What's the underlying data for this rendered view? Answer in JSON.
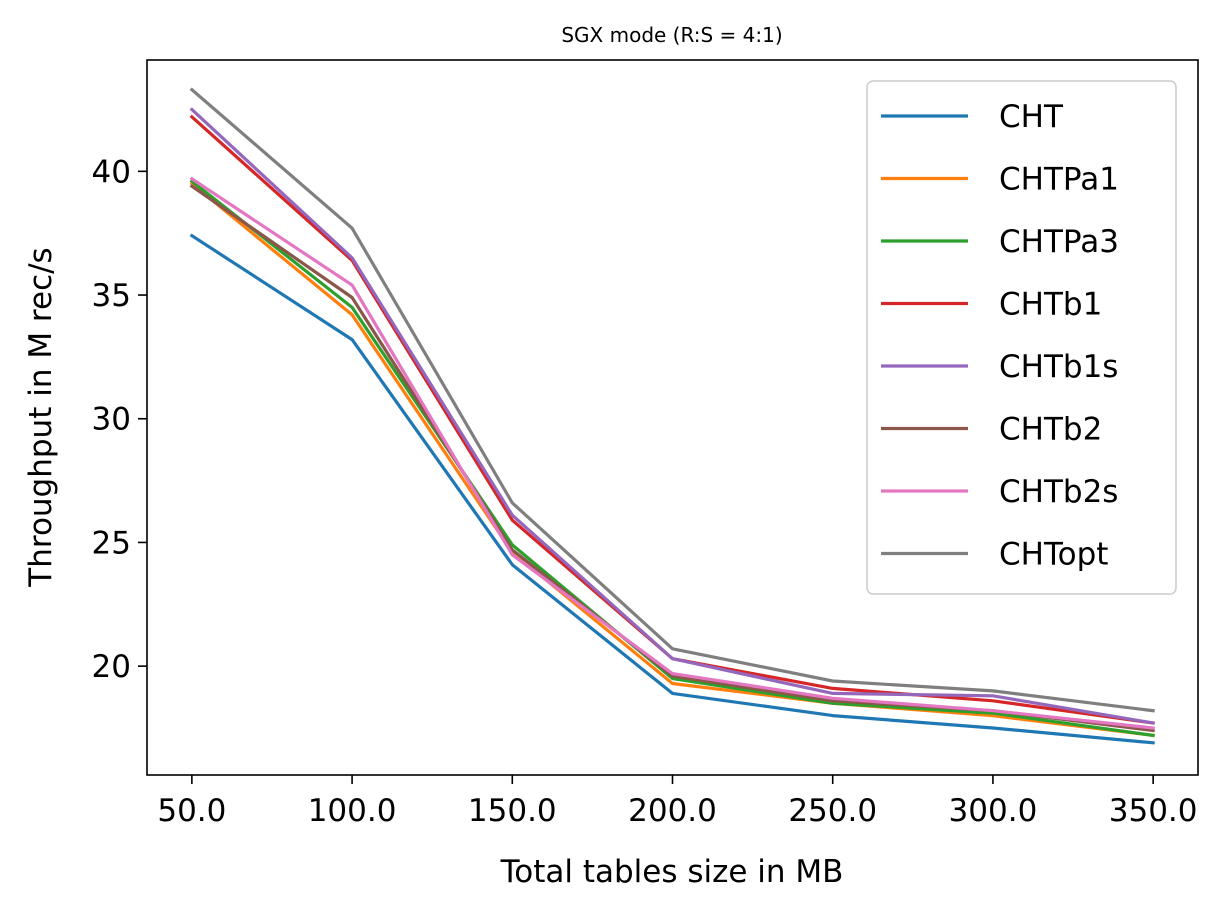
{
  "chart_data": {
    "type": "line",
    "title": "SGX mode (R:S = 4:1)",
    "xlabel": "Total tables size in MB",
    "ylabel": "Throughput in M rec/s",
    "x": [
      50.0,
      100.0,
      150.0,
      200.0,
      250.0,
      300.0,
      350.0
    ],
    "x_tick_labels": [
      "50.0",
      "100.0",
      "150.0",
      "200.0",
      "250.0",
      "300.0",
      "350.0"
    ],
    "y_ticks": [
      20,
      25,
      30,
      35,
      40
    ],
    "y_tick_labels": [
      "20",
      "25",
      "30",
      "35",
      "40"
    ],
    "xlim": [
      36,
      364
    ],
    "ylim": [
      15.6,
      44.5
    ],
    "grid": false,
    "legend_position": "top-right",
    "series": [
      {
        "name": "CHT",
        "color": "#1f77b4",
        "values": [
          37.4,
          33.2,
          24.1,
          18.9,
          18.0,
          17.5,
          16.9
        ]
      },
      {
        "name": "CHTPa1",
        "color": "#ff7f0e",
        "values": [
          39.5,
          34.2,
          24.6,
          19.3,
          18.5,
          18.0,
          17.2
        ]
      },
      {
        "name": "CHTPa3",
        "color": "#2ca02c",
        "values": [
          39.6,
          34.5,
          24.9,
          19.5,
          18.5,
          18.1,
          17.2
        ]
      },
      {
        "name": "CHTb1",
        "color": "#d62728",
        "values": [
          42.2,
          36.4,
          25.9,
          20.3,
          19.1,
          18.6,
          17.7
        ]
      },
      {
        "name": "CHTb1s",
        "color": "#9467bd",
        "values": [
          42.5,
          36.5,
          26.1,
          20.3,
          18.9,
          18.8,
          17.7
        ]
      },
      {
        "name": "CHTb2",
        "color": "#8c564b",
        "values": [
          39.4,
          34.9,
          24.7,
          19.6,
          18.6,
          18.2,
          17.4
        ]
      },
      {
        "name": "CHTb2s",
        "color": "#e377c2",
        "values": [
          39.7,
          35.4,
          24.5,
          19.7,
          18.7,
          18.2,
          17.5
        ]
      },
      {
        "name": "CHTopt",
        "color": "#7f7f7f",
        "values": [
          43.3,
          37.7,
          26.6,
          20.7,
          19.4,
          19.0,
          18.2
        ]
      }
    ]
  }
}
